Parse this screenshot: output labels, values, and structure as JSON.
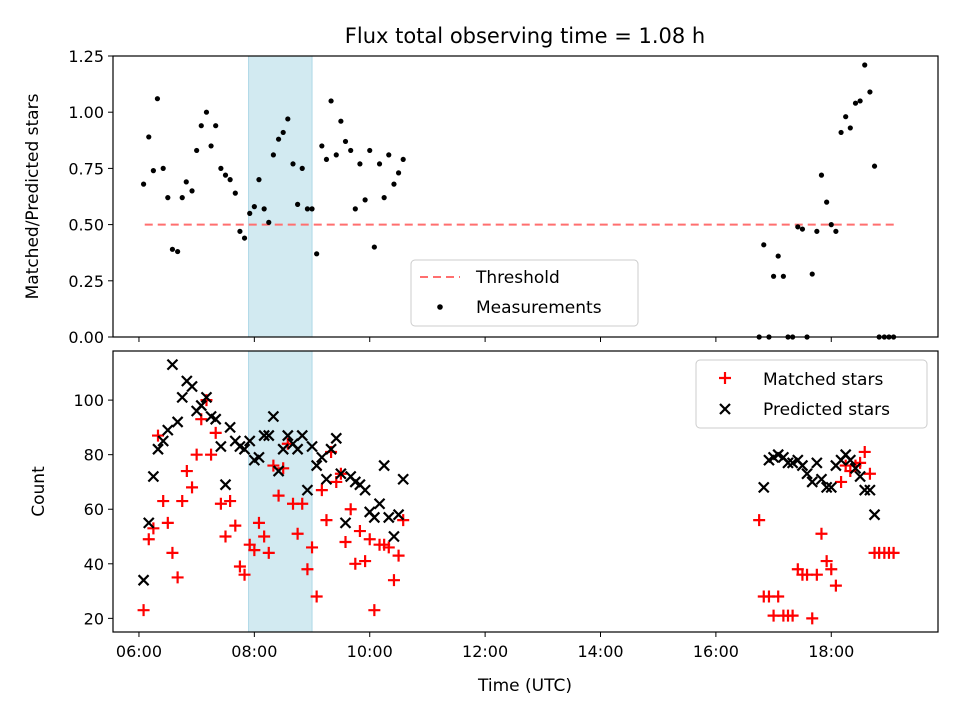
{
  "figure": {
    "title": "Flux total observing time = 1.08 h"
  },
  "highlight": {
    "start": 7.9,
    "end": 9.0,
    "color": "#add8e6"
  },
  "colors": {
    "threshold": "#ff6f6f",
    "measurements": "#000000",
    "matched": "#ff0000",
    "predicted": "#000000"
  },
  "chart_data": [
    {
      "type": "scatter",
      "ylabel": "Matched/Predicted stars",
      "xlabel": "",
      "xlim": [
        5.55,
        19.85
      ],
      "ylim": [
        0,
        1.25
      ],
      "yticks": [
        "0.00",
        "0.25",
        "0.50",
        "0.75",
        "1.00",
        "1.25"
      ],
      "threshold": {
        "name": "Threshold",
        "value": 0.5,
        "x": [
          6.1,
          19.1
        ]
      },
      "legend": {
        "position": "lower center",
        "entries": [
          "Threshold",
          "Measurements"
        ]
      },
      "series": [
        {
          "name": "Measurements",
          "points": [
            [
              6.08,
              0.68
            ],
            [
              6.17,
              0.89
            ],
            [
              6.25,
              0.74
            ],
            [
              6.32,
              1.06
            ],
            [
              6.42,
              0.75
            ],
            [
              6.5,
              0.62
            ],
            [
              6.58,
              0.39
            ],
            [
              6.67,
              0.38
            ],
            [
              6.75,
              0.62
            ],
            [
              6.82,
              0.69
            ],
            [
              6.92,
              0.65
            ],
            [
              7.0,
              0.83
            ],
            [
              7.08,
              0.94
            ],
            [
              7.17,
              1.0
            ],
            [
              7.25,
              0.85
            ],
            [
              7.33,
              0.94
            ],
            [
              7.42,
              0.75
            ],
            [
              7.5,
              0.72
            ],
            [
              7.58,
              0.7
            ],
            [
              7.67,
              0.64
            ],
            [
              7.75,
              0.47
            ],
            [
              7.83,
              0.44
            ],
            [
              7.92,
              0.55
            ],
            [
              8.0,
              0.58
            ],
            [
              8.08,
              0.7
            ],
            [
              8.17,
              0.57
            ],
            [
              8.25,
              0.51
            ],
            [
              8.33,
              0.81
            ],
            [
              8.42,
              0.88
            ],
            [
              8.5,
              0.91
            ],
            [
              8.58,
              0.97
            ],
            [
              8.67,
              0.77
            ],
            [
              8.75,
              0.59
            ],
            [
              8.83,
              0.75
            ],
            [
              8.92,
              0.57
            ],
            [
              9.0,
              0.57
            ],
            [
              9.08,
              0.37
            ],
            [
              9.17,
              0.85
            ],
            [
              9.25,
              0.79
            ],
            [
              9.33,
              1.05
            ],
            [
              9.42,
              0.81
            ],
            [
              9.5,
              0.96
            ],
            [
              9.58,
              0.87
            ],
            [
              9.67,
              0.83
            ],
            [
              9.75,
              0.57
            ],
            [
              9.83,
              0.77
            ],
            [
              9.92,
              0.61
            ],
            [
              10.0,
              0.83
            ],
            [
              10.08,
              0.4
            ],
            [
              10.17,
              0.77
            ],
            [
              10.25,
              0.62
            ],
            [
              10.33,
              0.81
            ],
            [
              10.42,
              0.68
            ],
            [
              10.5,
              0.73
            ],
            [
              10.58,
              0.79
            ],
            [
              16.75,
              0.0
            ],
            [
              16.83,
              0.41
            ],
            [
              16.92,
              0.0
            ],
            [
              17.0,
              0.27
            ],
            [
              17.08,
              0.36
            ],
            [
              17.17,
              0.27
            ],
            [
              17.25,
              0.0
            ],
            [
              17.33,
              0.0
            ],
            [
              17.42,
              0.49
            ],
            [
              17.5,
              0.48
            ],
            [
              17.58,
              0.0
            ],
            [
              17.67,
              0.28
            ],
            [
              17.75,
              0.47
            ],
            [
              17.83,
              0.72
            ],
            [
              17.92,
              0.6
            ],
            [
              18.0,
              0.5
            ],
            [
              18.08,
              0.47
            ],
            [
              18.17,
              0.91
            ],
            [
              18.25,
              0.98
            ],
            [
              18.33,
              0.93
            ],
            [
              18.42,
              1.04
            ],
            [
              18.5,
              1.05
            ],
            [
              18.58,
              1.21
            ],
            [
              18.67,
              1.09
            ],
            [
              18.75,
              0.76
            ],
            [
              18.83,
              0.0
            ],
            [
              18.92,
              0.0
            ],
            [
              19.0,
              0.0
            ],
            [
              19.08,
              0.0
            ]
          ]
        }
      ]
    },
    {
      "type": "scatter",
      "ylabel": "Count",
      "xlabel": "Time (UTC)",
      "xlim": [
        5.55,
        19.85
      ],
      "ylim": [
        15,
        118
      ],
      "yticks": [
        "20",
        "40",
        "60",
        "80",
        "100"
      ],
      "xticks": [
        "06:00",
        "08:00",
        "10:00",
        "12:00",
        "14:00",
        "16:00",
        "18:00"
      ],
      "legend": {
        "position": "upper right",
        "entries": [
          "Matched stars",
          "Predicted stars"
        ]
      },
      "series": [
        {
          "name": "Matched stars",
          "points": [
            [
              6.08,
              23
            ],
            [
              6.17,
              49
            ],
            [
              6.25,
              53
            ],
            [
              6.33,
              87
            ],
            [
              6.42,
              63
            ],
            [
              6.5,
              55
            ],
            [
              6.58,
              44
            ],
            [
              6.67,
              35
            ],
            [
              6.75,
              63
            ],
            [
              6.83,
              74
            ],
            [
              6.92,
              68
            ],
            [
              7.0,
              80
            ],
            [
              7.08,
              93
            ],
            [
              7.17,
              100
            ],
            [
              7.25,
              80
            ],
            [
              7.33,
              88
            ],
            [
              7.42,
              62
            ],
            [
              7.5,
              50
            ],
            [
              7.58,
              63
            ],
            [
              7.67,
              54
            ],
            [
              7.75,
              39
            ],
            [
              7.83,
              36
            ],
            [
              7.92,
              47
            ],
            [
              8.0,
              45
            ],
            [
              8.08,
              55
            ],
            [
              8.17,
              50
            ],
            [
              8.25,
              44
            ],
            [
              8.33,
              76
            ],
            [
              8.42,
              65
            ],
            [
              8.5,
              75
            ],
            [
              8.58,
              84
            ],
            [
              8.67,
              62
            ],
            [
              8.75,
              51
            ],
            [
              8.83,
              62
            ],
            [
              8.92,
              38
            ],
            [
              9.0,
              46
            ],
            [
              9.08,
              28
            ],
            [
              9.17,
              67
            ],
            [
              9.25,
              56
            ],
            [
              9.33,
              81
            ],
            [
              9.42,
              70
            ],
            [
              9.5,
              73
            ],
            [
              9.58,
              48
            ],
            [
              9.67,
              60
            ],
            [
              9.75,
              40
            ],
            [
              9.83,
              52
            ],
            [
              9.92,
              41
            ],
            [
              10.0,
              49
            ],
            [
              10.08,
              23
            ],
            [
              10.17,
              47
            ],
            [
              10.25,
              47
            ],
            [
              10.33,
              46
            ],
            [
              10.42,
              34
            ],
            [
              10.5,
              43
            ],
            [
              10.58,
              56
            ],
            [
              16.75,
              56
            ],
            [
              16.83,
              28
            ],
            [
              16.92,
              28
            ],
            [
              17.0,
              21
            ],
            [
              17.08,
              28
            ],
            [
              17.17,
              21
            ],
            [
              17.25,
              21
            ],
            [
              17.33,
              21
            ],
            [
              17.42,
              38
            ],
            [
              17.5,
              36
            ],
            [
              17.58,
              36
            ],
            [
              17.67,
              20
            ],
            [
              17.75,
              36
            ],
            [
              17.83,
              51
            ],
            [
              17.92,
              41
            ],
            [
              18.0,
              38
            ],
            [
              18.08,
              32
            ],
            [
              18.17,
              70
            ],
            [
              18.25,
              76
            ],
            [
              18.33,
              74
            ],
            [
              18.42,
              76
            ],
            [
              18.5,
              77
            ],
            [
              18.58,
              81
            ],
            [
              18.67,
              73
            ],
            [
              18.75,
              44
            ],
            [
              18.83,
              44
            ],
            [
              18.92,
              44
            ],
            [
              19.0,
              44
            ],
            [
              19.08,
              44
            ]
          ]
        },
        {
          "name": "Predicted stars",
          "points": [
            [
              6.08,
              34
            ],
            [
              6.17,
              55
            ],
            [
              6.25,
              72
            ],
            [
              6.33,
              82
            ],
            [
              6.42,
              85
            ],
            [
              6.5,
              89
            ],
            [
              6.58,
              113
            ],
            [
              6.67,
              92
            ],
            [
              6.75,
              101
            ],
            [
              6.83,
              107
            ],
            [
              6.92,
              105
            ],
            [
              7.0,
              96
            ],
            [
              7.08,
              98
            ],
            [
              7.17,
              101
            ],
            [
              7.25,
              94
            ],
            [
              7.33,
              93
            ],
            [
              7.42,
              83
            ],
            [
              7.5,
              69
            ],
            [
              7.58,
              90
            ],
            [
              7.67,
              85
            ],
            [
              7.75,
              83
            ],
            [
              7.83,
              82
            ],
            [
              7.92,
              85
            ],
            [
              8.0,
              78
            ],
            [
              8.08,
              79
            ],
            [
              8.17,
              87
            ],
            [
              8.25,
              87
            ],
            [
              8.33,
              94
            ],
            [
              8.42,
              74
            ],
            [
              8.5,
              82
            ],
            [
              8.58,
              87
            ],
            [
              8.67,
              84
            ],
            [
              8.75,
              82
            ],
            [
              8.83,
              87
            ],
            [
              8.92,
              67
            ],
            [
              9.0,
              83
            ],
            [
              9.08,
              76
            ],
            [
              9.17,
              79
            ],
            [
              9.25,
              71
            ],
            [
              9.33,
              82
            ],
            [
              9.42,
              86
            ],
            [
              9.5,
              73
            ],
            [
              9.58,
              55
            ],
            [
              9.67,
              72
            ],
            [
              9.75,
              70
            ],
            [
              9.83,
              69
            ],
            [
              9.92,
              67
            ],
            [
              10.0,
              59
            ],
            [
              10.08,
              57
            ],
            [
              10.17,
              62
            ],
            [
              10.25,
              76
            ],
            [
              10.33,
              57
            ],
            [
              10.42,
              50
            ],
            [
              10.5,
              58
            ],
            [
              10.58,
              71
            ],
            [
              16.83,
              68
            ],
            [
              16.92,
              78
            ],
            [
              17.0,
              79
            ],
            [
              17.08,
              80
            ],
            [
              17.17,
              79
            ],
            [
              17.25,
              77
            ],
            [
              17.33,
              77
            ],
            [
              17.42,
              78
            ],
            [
              17.5,
              76
            ],
            [
              17.58,
              73
            ],
            [
              17.67,
              70
            ],
            [
              17.75,
              77
            ],
            [
              17.83,
              71
            ],
            [
              17.92,
              68
            ],
            [
              18.0,
              68
            ],
            [
              18.08,
              76
            ],
            [
              18.17,
              78
            ],
            [
              18.25,
              80
            ],
            [
              18.33,
              78
            ],
            [
              18.42,
              75
            ],
            [
              18.5,
              72
            ],
            [
              18.58,
              67
            ],
            [
              18.67,
              67
            ],
            [
              18.75,
              58
            ]
          ]
        }
      ]
    }
  ]
}
